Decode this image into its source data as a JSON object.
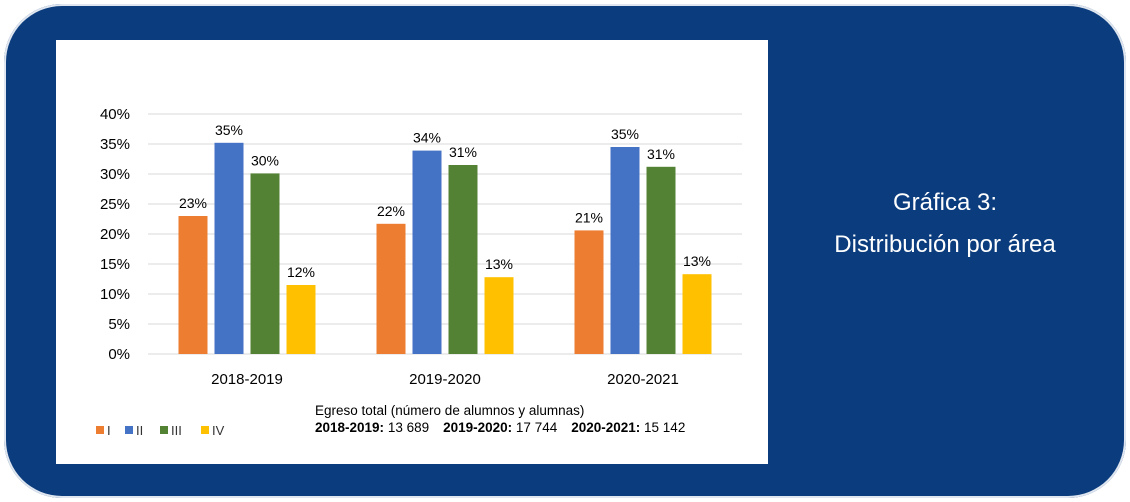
{
  "caption": {
    "line1": "Gráfica 3:",
    "line2": "Distribución por área"
  },
  "chart_data": {
    "type": "bar",
    "categories": [
      "2018-2019",
      "2019-2020",
      "2020-2021"
    ],
    "ylim": [
      0,
      40
    ],
    "yticks": [
      0,
      5,
      10,
      15,
      20,
      25,
      30,
      35,
      40
    ],
    "ytick_labels": [
      "0%",
      "5%",
      "10%",
      "15%",
      "20%",
      "25%",
      "30%",
      "35%",
      "40%"
    ],
    "series": [
      {
        "name": "I",
        "color": "#ed7d31",
        "values": [
          23,
          21.7,
          20.6
        ],
        "labels": [
          "23%",
          "22%",
          "21%"
        ]
      },
      {
        "name": "II",
        "color": "#4472c4",
        "values": [
          35.2,
          33.9,
          34.5
        ],
        "labels": [
          "35%",
          "34%",
          "35%"
        ]
      },
      {
        "name": "III",
        "color": "#548235",
        "values": [
          30.1,
          31.5,
          31.2
        ],
        "labels": [
          "30%",
          "31%",
          "31%"
        ]
      },
      {
        "name": "IV",
        "color": "#ffc000",
        "values": [
          11.5,
          12.8,
          13.3
        ],
        "labels": [
          "12%",
          "13%",
          "13%"
        ]
      }
    ],
    "legend_position": "bottom-left",
    "grid": true,
    "note": {
      "heading": "Egreso total (número de alumnos y alumnas)",
      "items": [
        {
          "label": "2018-2019:",
          "value": "13 689"
        },
        {
          "label": "2019-2020:",
          "value": "17 744"
        },
        {
          "label": "2020-2021:",
          "value": "15 142"
        }
      ]
    }
  }
}
